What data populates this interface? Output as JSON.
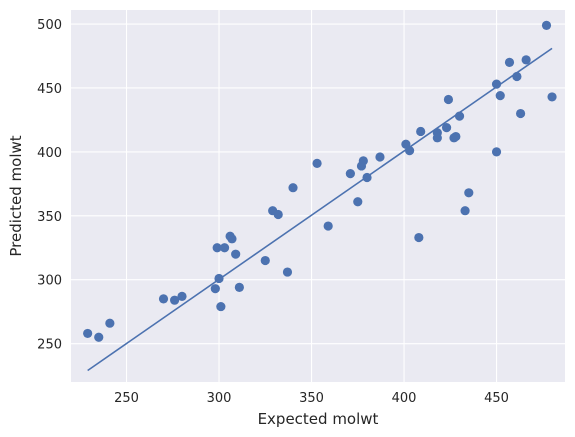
{
  "colors": {
    "plot_background": "#eaeaf2",
    "grid": "#ffffff",
    "points": "#4c72b0",
    "fit_line": "#4c72b0"
  },
  "chart_data": {
    "type": "scatter",
    "title": "",
    "xlabel": "Expected molwt",
    "ylabel": "Predicted molwt",
    "xlim": [
      220,
      487
    ],
    "ylim": [
      220,
      511
    ],
    "xticks": [
      250,
      300,
      350,
      400,
      450
    ],
    "yticks": [
      250,
      300,
      350,
      400,
      450,
      500
    ],
    "grid": true,
    "legend": "none",
    "series": [
      {
        "points": [
          [
            229,
            258
          ],
          [
            235,
            255
          ],
          [
            241,
            266
          ],
          [
            270,
            285
          ],
          [
            276,
            284
          ],
          [
            280,
            287
          ],
          [
            299,
            325
          ],
          [
            298,
            293
          ],
          [
            300,
            301
          ],
          [
            301,
            279
          ],
          [
            303,
            325
          ],
          [
            306,
            334
          ],
          [
            307,
            332
          ],
          [
            309,
            320
          ],
          [
            311,
            294
          ],
          [
            325,
            315
          ],
          [
            329,
            354
          ],
          [
            332,
            351
          ],
          [
            337,
            306
          ],
          [
            340,
            372
          ],
          [
            353,
            391
          ],
          [
            359,
            342
          ],
          [
            371,
            383
          ],
          [
            375,
            361
          ],
          [
            377,
            389
          ],
          [
            378,
            393
          ],
          [
            380,
            380
          ],
          [
            387,
            396
          ],
          [
            401,
            406
          ],
          [
            403,
            401
          ],
          [
            408,
            333
          ],
          [
            409,
            416
          ],
          [
            418,
            411
          ],
          [
            418,
            415
          ],
          [
            423,
            419
          ],
          [
            424,
            441
          ],
          [
            427,
            411
          ],
          [
            428,
            412
          ],
          [
            430,
            428
          ],
          [
            433,
            354
          ],
          [
            435,
            368
          ],
          [
            450,
            400
          ],
          [
            450,
            453
          ],
          [
            452,
            444
          ],
          [
            457,
            470
          ],
          [
            461,
            459
          ],
          [
            463,
            430
          ],
          [
            466,
            472
          ],
          [
            477,
            499
          ],
          [
            480,
            443
          ]
        ]
      }
    ],
    "fit_line": {
      "x": [
        229,
        480
      ],
      "y": [
        229,
        481
      ]
    }
  }
}
